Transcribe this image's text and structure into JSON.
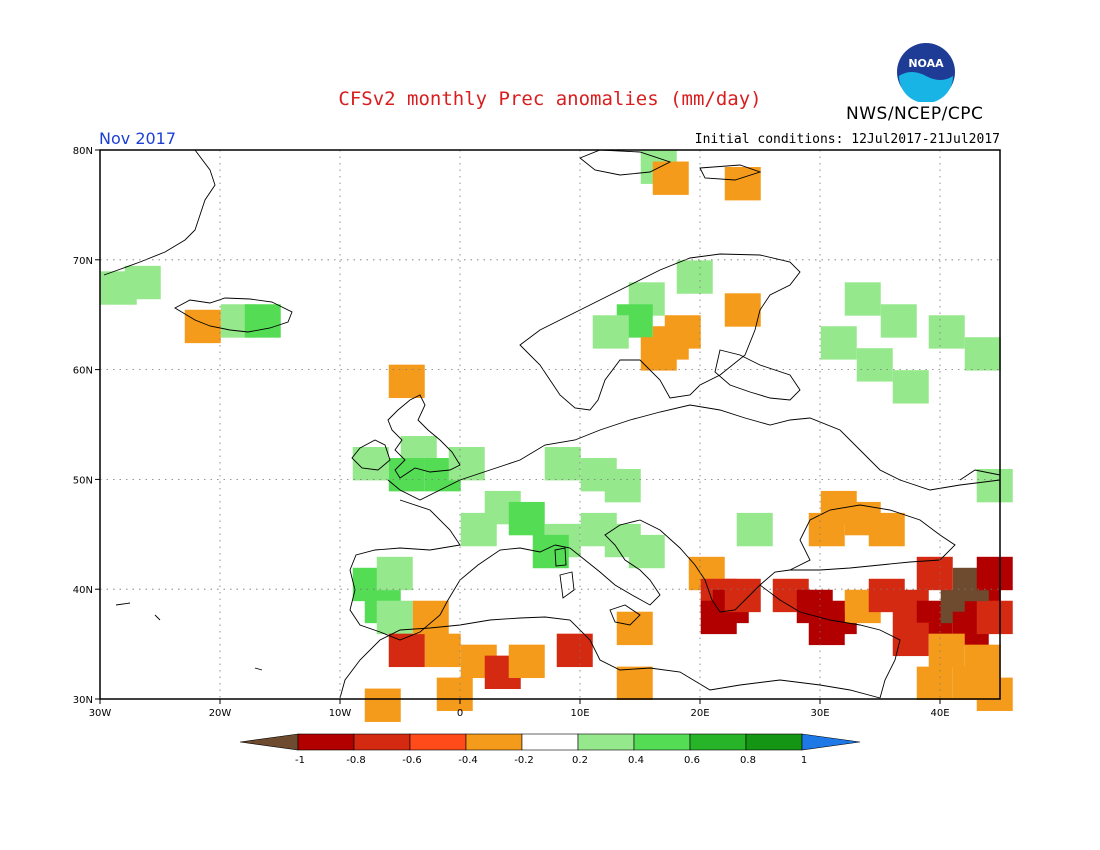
{
  "header": {
    "title": "CFSv2 monthly Prec anomalies (mm/day)",
    "agency": "NWS/NCEP/CPC",
    "logo_text": "NOAA",
    "period": "Nov 2017",
    "initial_conditions": "Initial conditions: 12Jul2017-21Jul2017"
  },
  "map": {
    "region": "Europe",
    "lon_range": [
      -30,
      45
    ],
    "lat_range": [
      30,
      80
    ],
    "lat_ticks": [
      {
        "v": 80,
        "label": "80N"
      },
      {
        "v": 70,
        "label": "70N"
      },
      {
        "v": 60,
        "label": "60N"
      },
      {
        "v": 50,
        "label": "50N"
      },
      {
        "v": 40,
        "label": "40N"
      },
      {
        "v": 30,
        "label": "30N"
      }
    ],
    "lon_ticks": [
      {
        "v": -30,
        "label": "30W"
      },
      {
        "v": -20,
        "label": "20W"
      },
      {
        "v": -10,
        "label": "10W"
      },
      {
        "v": 0,
        "label": "0"
      },
      {
        "v": 10,
        "label": "10E"
      },
      {
        "v": 20,
        "label": "20E"
      },
      {
        "v": 30,
        "label": "30E"
      },
      {
        "v": 40,
        "label": "40E"
      }
    ],
    "grid": "dotted"
  },
  "legend": {
    "levels": [
      "-1",
      "-0.8",
      "-0.6",
      "-0.4",
      "-0.2",
      "0.2",
      "0.4",
      "0.6",
      "0.8",
      "1"
    ],
    "colors": [
      "#6e4a2e",
      "#b20000",
      "#d42a12",
      "#ff4a1a",
      "#f59b1b",
      "#ffffff",
      "#96e88c",
      "#55dc55",
      "#28b428",
      "#149614",
      "#1e78e6"
    ]
  },
  "anomaly_patches": [
    {
      "lon": -27,
      "lat": 68.5,
      "level": "0.4"
    },
    {
      "lon": -29,
      "lat": 68,
      "level": "0.4"
    },
    {
      "lon": -19,
      "lat": 65,
      "level": "0.4"
    },
    {
      "lon": -17,
      "lat": 65,
      "level": "0.6"
    },
    {
      "lon": -22,
      "lat": 64.5,
      "level": "-0.4"
    },
    {
      "lon": 15,
      "lat": 67,
      "level": "0.4"
    },
    {
      "lon": 14,
      "lat": 65,
      "level": "0.6"
    },
    {
      "lon": 12,
      "lat": 64,
      "level": "0.4"
    },
    {
      "lon": 19,
      "lat": 69,
      "level": "0.4"
    },
    {
      "lon": 18,
      "lat": 64,
      "level": "-0.4"
    },
    {
      "lon": 17,
      "lat": 63,
      "level": "-0.4"
    },
    {
      "lon": 16,
      "lat": 62,
      "level": "-0.4"
    },
    {
      "lon": 23,
      "lat": 66,
      "level": "-0.4"
    },
    {
      "lon": 16,
      "lat": 79,
      "level": "0.4"
    },
    {
      "lon": 17,
      "lat": 78,
      "level": "-0.4"
    },
    {
      "lon": 23,
      "lat": 77.5,
      "level": "-0.4"
    },
    {
      "lon": 33,
      "lat": 67,
      "level": "0.4"
    },
    {
      "lon": 36,
      "lat": 65,
      "level": "0.4"
    },
    {
      "lon": 40,
      "lat": 64,
      "level": "0.4"
    },
    {
      "lon": 43,
      "lat": 62,
      "level": "0.4"
    },
    {
      "lon": 34,
      "lat": 61,
      "level": "0.4"
    },
    {
      "lon": 37,
      "lat": 59,
      "level": "0.4"
    },
    {
      "lon": 31,
      "lat": 63,
      "level": "0.4"
    },
    {
      "lon": -8,
      "lat": 52,
      "level": "0.4"
    },
    {
      "lon": -4,
      "lat": 53,
      "level": "0.4"
    },
    {
      "lon": -2,
      "lat": 51,
      "level": "0.6"
    },
    {
      "lon": -5,
      "lat": 51,
      "level": "0.6"
    },
    {
      "lon": 0,
      "lat": 52,
      "level": "0.4"
    },
    {
      "lon": 3,
      "lat": 48,
      "level": "0.4"
    },
    {
      "lon": 5,
      "lat": 47,
      "level": "0.6"
    },
    {
      "lon": 1,
      "lat": 46,
      "level": "0.4"
    },
    {
      "lon": 8,
      "lat": 52,
      "level": "0.4"
    },
    {
      "lon": 11,
      "lat": 51,
      "level": "0.4"
    },
    {
      "lon": 13,
      "lat": 50,
      "level": "0.4"
    },
    {
      "lon": 8,
      "lat": 45,
      "level": "0.4"
    },
    {
      "lon": 7,
      "lat": 44,
      "level": "0.6"
    },
    {
      "lon": 11,
      "lat": 46,
      "level": "0.4"
    },
    {
      "lon": 13,
      "lat": 45,
      "level": "0.4"
    },
    {
      "lon": 15,
      "lat": 44,
      "level": "0.4"
    },
    {
      "lon": -8,
      "lat": 41,
      "level": "0.6"
    },
    {
      "lon": -7,
      "lat": 39,
      "level": "0.6"
    },
    {
      "lon": -6,
      "lat": 42,
      "level": "0.4"
    },
    {
      "lon": -6,
      "lat": 38,
      "level": "0.4"
    },
    {
      "lon": 24,
      "lat": 46,
      "level": "0.4"
    },
    {
      "lon": 44,
      "lat": 50,
      "level": "0.4"
    },
    {
      "lon": 31,
      "lat": 48,
      "level": "-0.4"
    },
    {
      "lon": 33,
      "lat": 47,
      "level": "-0.4"
    },
    {
      "lon": 30,
      "lat": 46,
      "level": "-0.4"
    },
    {
      "lon": 35,
      "lat": 46,
      "level": "-0.4"
    },
    {
      "lon": 20,
      "lat": 42,
      "level": "-0.4"
    },
    {
      "lon": 21,
      "lat": 40,
      "level": "-0.6"
    },
    {
      "lon": 22,
      "lat": 39,
      "level": "-0.8"
    },
    {
      "lon": 21,
      "lat": 38,
      "level": "-0.8"
    },
    {
      "lon": 23,
      "lat": 40,
      "level": "-0.6"
    },
    {
      "lon": 27,
      "lat": 40,
      "level": "-0.6"
    },
    {
      "lon": 29,
      "lat": 39,
      "level": "-0.8"
    },
    {
      "lon": 31,
      "lat": 38,
      "level": "-0.8"
    },
    {
      "lon": 33,
      "lat": 39,
      "level": "-0.4"
    },
    {
      "lon": 30,
      "lat": 37,
      "level": "-0.8"
    },
    {
      "lon": 35,
      "lat": 40,
      "level": "-0.6"
    },
    {
      "lon": 37,
      "lat": 39,
      "level": "-0.6"
    },
    {
      "lon": 39,
      "lat": 38,
      "level": "-0.8"
    },
    {
      "lon": 41,
      "lat": 39,
      "level": "-1"
    },
    {
      "lon": 43,
      "lat": 40,
      "level": "-0.8"
    },
    {
      "lon": 42,
      "lat": 37,
      "level": "-0.8"
    },
    {
      "lon": 44,
      "lat": 38,
      "level": "-0.6"
    },
    {
      "lon": 42,
      "lat": 41,
      "level": "-1"
    },
    {
      "lon": 44,
      "lat": 42,
      "level": "-0.8"
    },
    {
      "lon": 39,
      "lat": 42,
      "level": "-0.6"
    },
    {
      "lon": 37,
      "lat": 36,
      "level": "-0.6"
    },
    {
      "lon": 40,
      "lat": 35,
      "level": "-0.4"
    },
    {
      "lon": 43,
      "lat": 34,
      "level": "-0.4"
    },
    {
      "lon": 42,
      "lat": 32,
      "level": "-0.4"
    },
    {
      "lon": 39,
      "lat": 32,
      "level": "-0.4"
    },
    {
      "lon": 44,
      "lat": 31,
      "level": "-0.4"
    },
    {
      "lon": -2,
      "lat": 35,
      "level": "-0.4"
    },
    {
      "lon": 1,
      "lat": 34,
      "level": "-0.4"
    },
    {
      "lon": 3,
      "lat": 33,
      "level": "-0.6"
    },
    {
      "lon": 5,
      "lat": 34,
      "level": "-0.4"
    },
    {
      "lon": -1,
      "lat": 31,
      "level": "-0.4"
    },
    {
      "lon": 9,
      "lat": 35,
      "level": "-0.6"
    },
    {
      "lon": -5,
      "lat": 35,
      "level": "-0.6"
    },
    {
      "lon": -3,
      "lat": 38,
      "level": "-0.4"
    },
    {
      "lon": 14,
      "lat": 37,
      "level": "-0.4"
    },
    {
      "lon": 14,
      "lat": 32,
      "level": "-0.4"
    },
    {
      "lon": -7,
      "lat": 30,
      "level": "-0.4"
    },
    {
      "lon": -5,
      "lat": 59.5,
      "level": "-0.4"
    }
  ]
}
